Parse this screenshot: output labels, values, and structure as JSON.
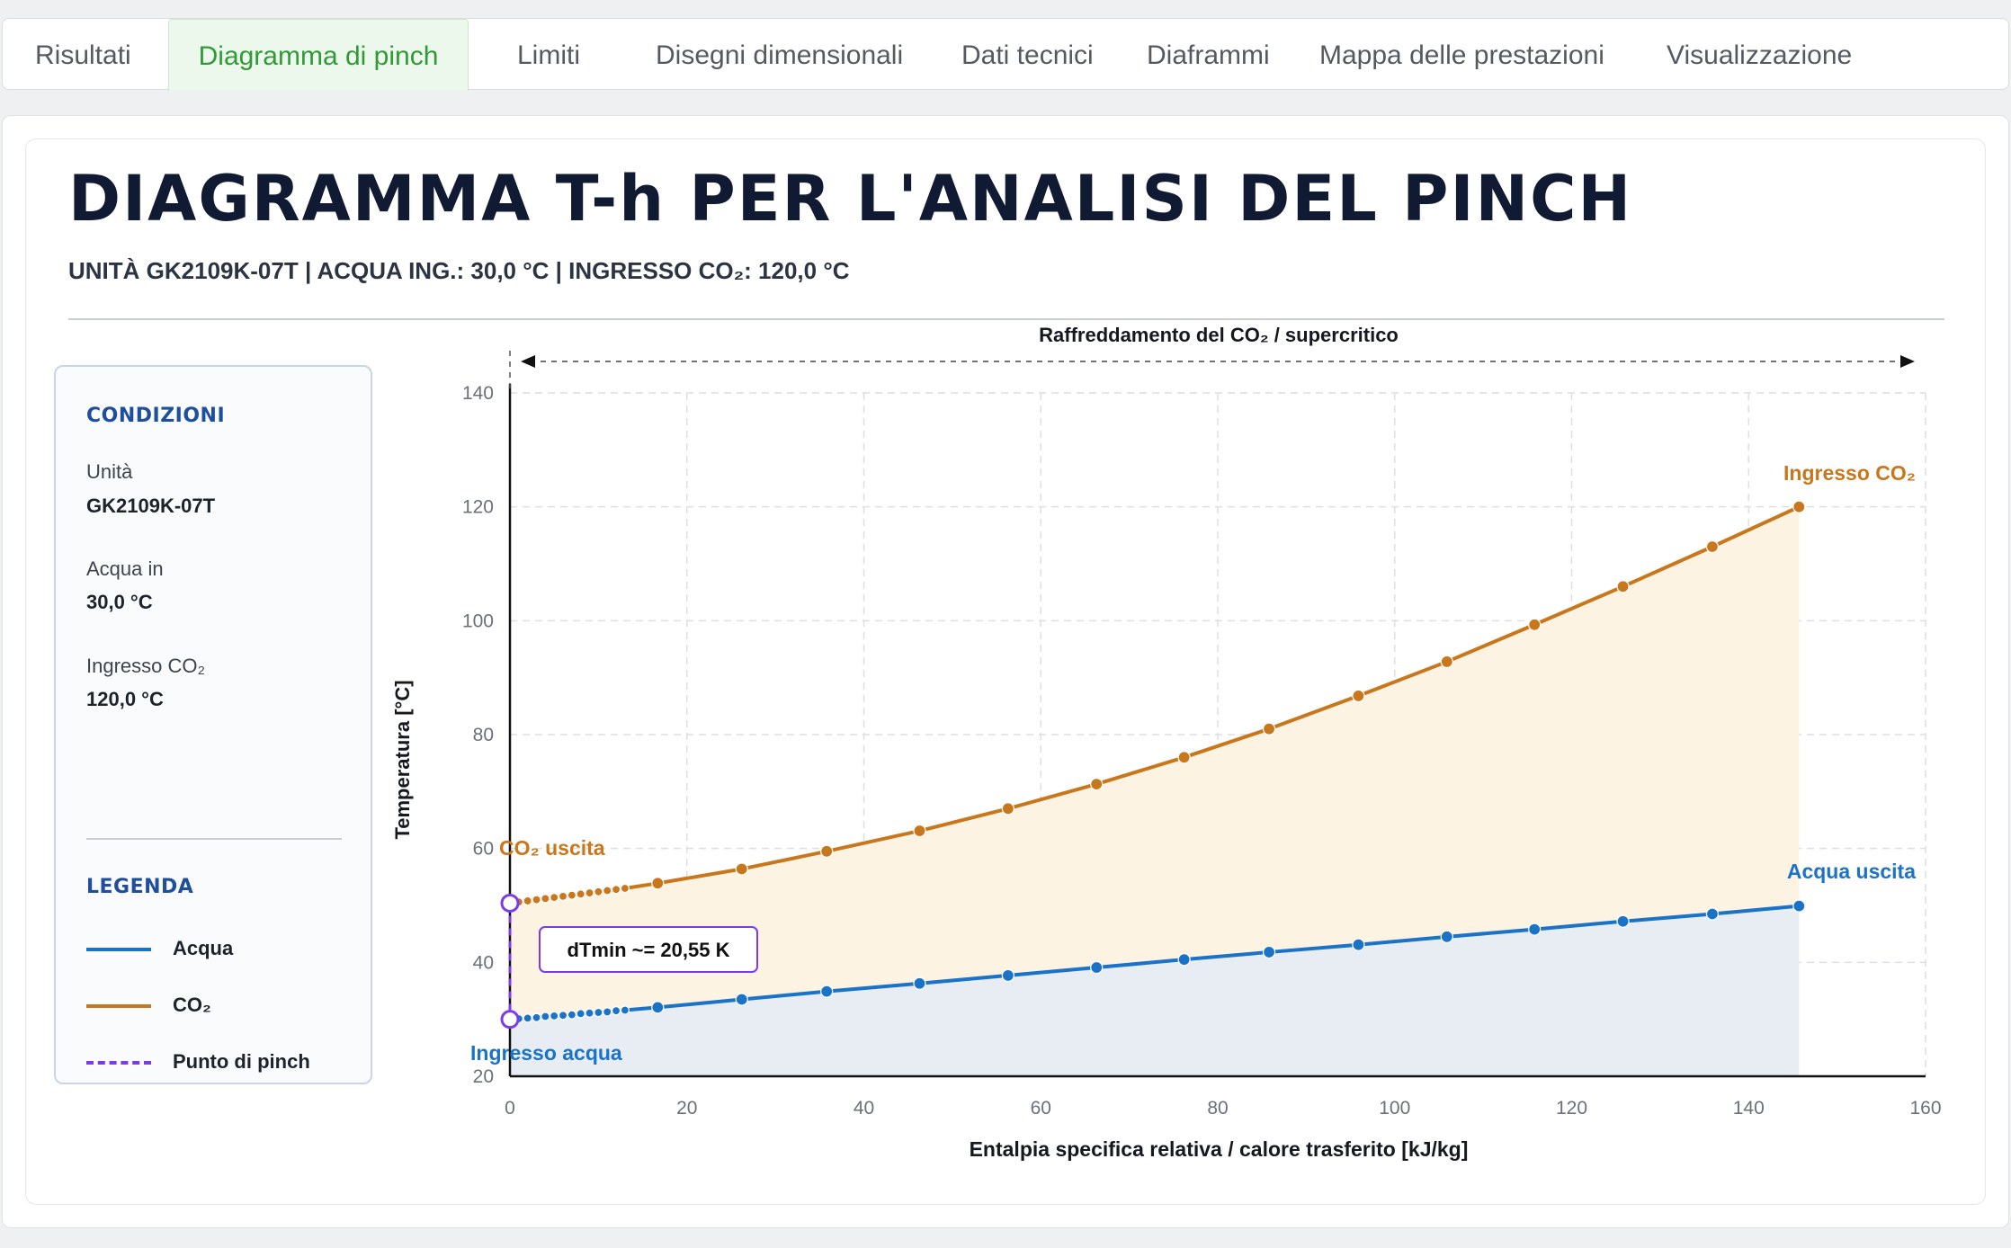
{
  "tabs": [
    {
      "label": "Risultati",
      "active": false
    },
    {
      "label": "Diagramma di pinch",
      "active": true
    },
    {
      "label": "Limiti",
      "active": false
    },
    {
      "label": "Disegni dimensionali",
      "active": false
    },
    {
      "label": "Dati tecnici",
      "active": false
    },
    {
      "label": "Diaframmi",
      "active": false
    },
    {
      "label": "Mappa delle prestazioni",
      "active": false
    },
    {
      "label": "Visualizzazione",
      "active": false
    }
  ],
  "header": {
    "title": "DIAGRAMMA T-h PER L'ANALISI DEL PINCH",
    "subtitle": "UNITÀ GK2109K-07T | ACQUA ING.: 30,0 °C | INGRESSO CO₂: 120,0 °C"
  },
  "conditions": {
    "heading": "CONDIZIONI",
    "unit_label": "Unità",
    "unit_value": "GK2109K-07T",
    "water_label": "Acqua in",
    "water_value": "30,0 °C",
    "co2_label": "Ingresso CO₂",
    "co2_value": "120,0 °C"
  },
  "legend": {
    "heading": "LEGENDA",
    "items": [
      {
        "label": "Acqua",
        "color": "#1b73c8",
        "style": "solid"
      },
      {
        "label": "CO₂",
        "color": "#c8771c",
        "style": "solid"
      },
      {
        "label": "Punto di pinch",
        "color": "#7c3aed",
        "style": "dashed"
      }
    ]
  },
  "chart_data": {
    "type": "line",
    "xlabel": "Entalpia specifica relativa / calore trasferito [kJ/kg]",
    "ylabel": "Temperatura [°C]",
    "xlim": [
      0,
      160
    ],
    "ylim": [
      20,
      140
    ],
    "xticks": [
      0,
      20,
      40,
      60,
      80,
      100,
      120,
      140,
      160
    ],
    "yticks": [
      20,
      40,
      60,
      80,
      100,
      120,
      140
    ],
    "grid": true,
    "region_label": "Raffreddamento del CO₂ / supercritico",
    "series": [
      {
        "name": "CO₂",
        "color": "#c8771c",
        "fill": "#fdf3e3",
        "x": [
          0,
          1,
          2,
          3,
          4,
          5,
          6,
          7,
          8,
          9,
          10,
          11,
          12,
          13,
          16.7,
          26.2,
          35.8,
          46.3,
          56.3,
          66.3,
          76.2,
          85.8,
          95.9,
          105.9,
          115.8,
          125.8,
          135.9,
          145.7
        ],
        "y": [
          50.4,
          50.6,
          50.8,
          51.0,
          51.2,
          51.4,
          51.6,
          51.8,
          52.0,
          52.2,
          52.4,
          52.6,
          52.8,
          53.0,
          53.9,
          56.4,
          59.5,
          63.1,
          67.0,
          71.3,
          76.0,
          81.0,
          86.8,
          92.8,
          99.3,
          106.0,
          113.0,
          120.0
        ]
      },
      {
        "name": "Acqua",
        "color": "#1b73c8",
        "fill": "#e7edf2",
        "x": [
          0,
          1,
          2,
          3,
          4,
          5,
          6,
          7,
          8,
          9,
          10,
          11,
          12,
          13,
          16.7,
          26.2,
          35.8,
          46.3,
          56.3,
          66.3,
          76.2,
          85.8,
          95.9,
          105.9,
          115.8,
          125.8,
          135.9,
          145.7
        ],
        "y": [
          30.0,
          30.1,
          30.2,
          30.3,
          30.5,
          30.6,
          30.7,
          30.8,
          31.0,
          31.1,
          31.2,
          31.3,
          31.5,
          31.6,
          32.1,
          33.5,
          34.9,
          36.3,
          37.7,
          39.1,
          40.5,
          41.8,
          43.1,
          44.5,
          45.8,
          47.2,
          48.5,
          49.9
        ]
      }
    ],
    "annotations": {
      "co2_in": "Ingresso CO₂",
      "co2_out": "CO₂ uscita",
      "water_in": "Ingresso acqua",
      "water_out": "Acqua uscita",
      "dtmin": "dTmin ~= 20,55 K",
      "pinch_x": 0
    }
  }
}
